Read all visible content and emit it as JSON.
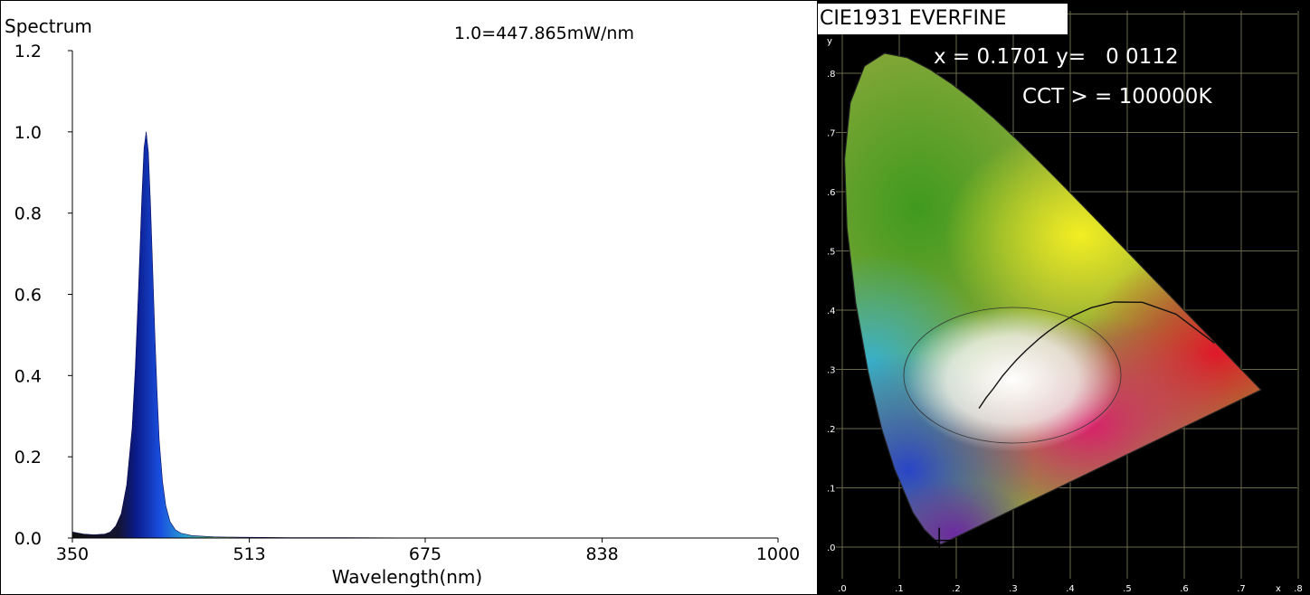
{
  "chart_data": [
    {
      "type": "area",
      "ylabel": "Spectrum",
      "xlabel": "Wavelength(nm)",
      "annotation": "1.0=447.865mW/nm",
      "xlim": [
        350,
        1000
      ],
      "ylim": [
        0,
        1.2
      ],
      "x_ticks": [
        "350",
        "513",
        "675",
        "838",
        "1000"
      ],
      "y_ticks": [
        "0.0",
        "0.2",
        "0.4",
        "0.6",
        "0.8",
        "1.0",
        "1.2"
      ],
      "grid": false,
      "series": [
        {
          "x": [
            350,
            360,
            370,
            380,
            385,
            390,
            395,
            400,
            405,
            408,
            411,
            414,
            416,
            418,
            420,
            422,
            424,
            426,
            428,
            430,
            433,
            436,
            440,
            445,
            450,
            460,
            480,
            500,
            550,
            600,
            700,
            800,
            900,
            1000
          ],
          "values": [
            0.015,
            0.01,
            0.008,
            0.01,
            0.015,
            0.03,
            0.06,
            0.13,
            0.27,
            0.42,
            0.62,
            0.84,
            0.96,
            1.0,
            0.95,
            0.82,
            0.66,
            0.5,
            0.36,
            0.24,
            0.14,
            0.08,
            0.04,
            0.02,
            0.012,
            0.006,
            0.003,
            0.002,
            0.001,
            0.001,
            0.0,
            0.0,
            0.0,
            0.0
          ]
        }
      ]
    },
    {
      "type": "scatter",
      "title": "CIE1931 EVERFINE",
      "x_ticks": [
        ".0",
        ".1",
        ".2",
        ".3",
        ".4",
        ".5",
        ".6",
        ".7",
        "x",
        ".8"
      ],
      "y_ticks": [
        ".0",
        ".1",
        ".2",
        ".3",
        ".4",
        ".5",
        ".6",
        ".7",
        ".8"
      ],
      "y_axis_label": "y",
      "xlim": [
        0,
        0.8
      ],
      "ylim": [
        0,
        0.9
      ],
      "readout_xy": "x = 0.1701 y=   0 0112",
      "readout_cct": "CCT > = 100000K",
      "point": {
        "x": 0.1701,
        "y": 0.0112
      }
    }
  ]
}
